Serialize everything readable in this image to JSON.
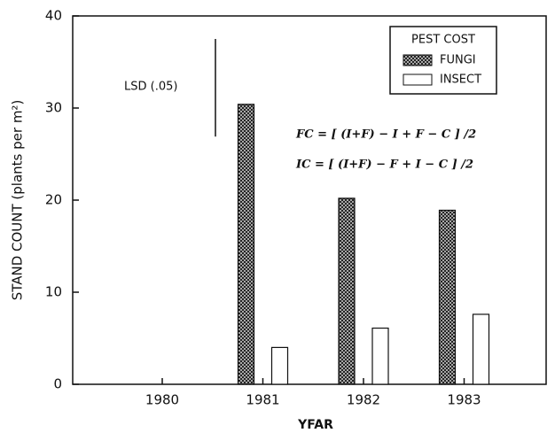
{
  "chart_data": {
    "type": "bar",
    "ylabel": "STAND COUNT  (plants per m²)",
    "xlabel": "YFAR",
    "categories": [
      "1980",
      "1981",
      "1982",
      "1983"
    ],
    "series": [
      {
        "name": "FUNGI",
        "color": "#333333",
        "values": [
          0,
          30.4,
          20.2,
          18.9
        ]
      },
      {
        "name": "INSECT",
        "color": "#ffffff",
        "values": [
          0,
          4.0,
          6.1,
          7.6
        ]
      }
    ],
    "ylim": [
      0,
      40
    ],
    "yticks": [
      0,
      10,
      20,
      30,
      40
    ],
    "legend_title": "PEST COST",
    "legend": "upper right",
    "lsd": {
      "label": "LSD (.05)",
      "from": 26.9,
      "to": 37.5
    },
    "annotations": [
      "FC = [ (I+F) − I + F − C ] /2",
      "IC = [ (I+F) − F + I − C ] /2"
    ]
  }
}
